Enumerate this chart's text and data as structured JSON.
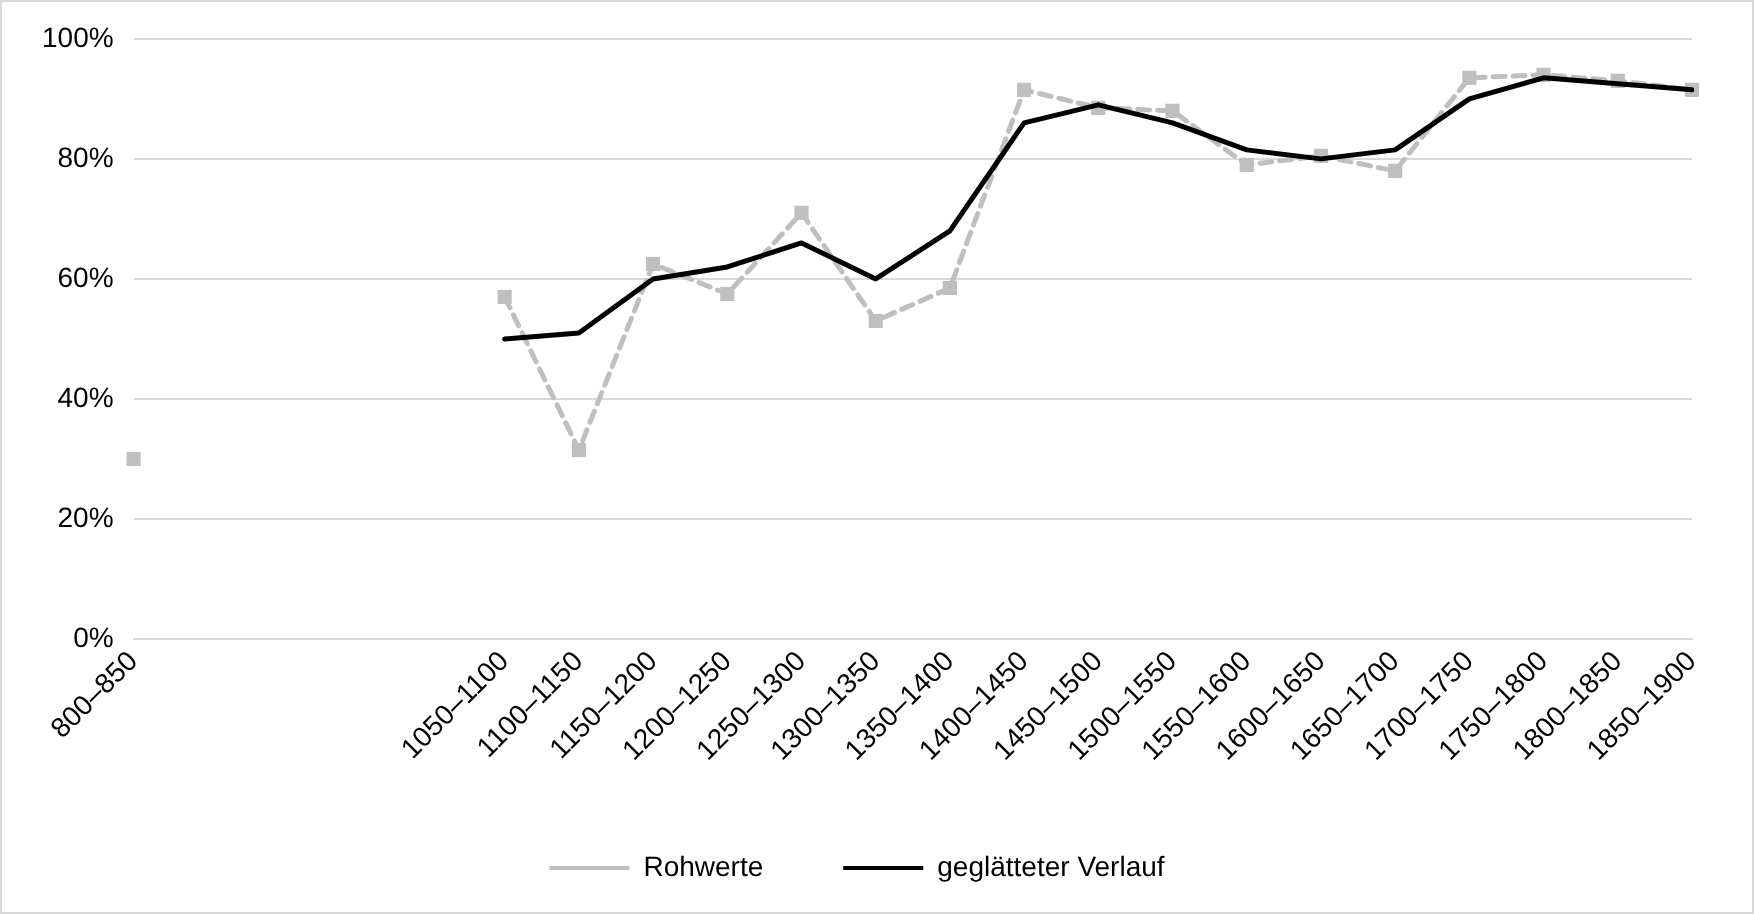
{
  "chart_data": {
    "type": "line",
    "categories": [
      "800–850",
      null,
      null,
      null,
      null,
      "1050–1100",
      "1100–1150",
      "1150–1200",
      "1200–1250",
      "1250–1300",
      "1300–1350",
      "1350–1400",
      "1400–1450",
      "1450–1500",
      "1500–1550",
      "1550–1600",
      "1600–1650",
      "1650–1700",
      "1700–1750",
      "1750–1800",
      "1800–1850",
      "1850–1900"
    ],
    "series": [
      {
        "name": "Rohwerte",
        "color": "#bfbfbf",
        "marker": "square",
        "line_style": "dashed",
        "values": [
          30,
          null,
          null,
          null,
          null,
          57,
          31.5,
          62.5,
          57.5,
          71,
          53,
          58.5,
          91.5,
          88.5,
          88,
          79,
          80.5,
          78,
          93.5,
          94,
          93,
          91.5
        ]
      },
      {
        "name": "geglätteter Verlauf",
        "color": "#000000",
        "marker": "none",
        "line_style": "solid",
        "values": [
          null,
          null,
          null,
          null,
          null,
          50,
          51,
          60,
          62,
          66,
          60,
          68,
          86,
          89,
          86,
          81.5,
          80,
          81.5,
          90,
          93.5,
          92.5,
          91.5
        ]
      }
    ],
    "ylim": [
      0,
      100
    ],
    "yticks": [
      {
        "value": 0,
        "label": "0%"
      },
      {
        "value": 20,
        "label": "20%"
      },
      {
        "value": 40,
        "label": "40%"
      },
      {
        "value": 60,
        "label": "60%"
      },
      {
        "value": 80,
        "label": "80%"
      },
      {
        "value": 100,
        "label": "100%"
      }
    ],
    "grid": "y",
    "legend": "bottom"
  }
}
